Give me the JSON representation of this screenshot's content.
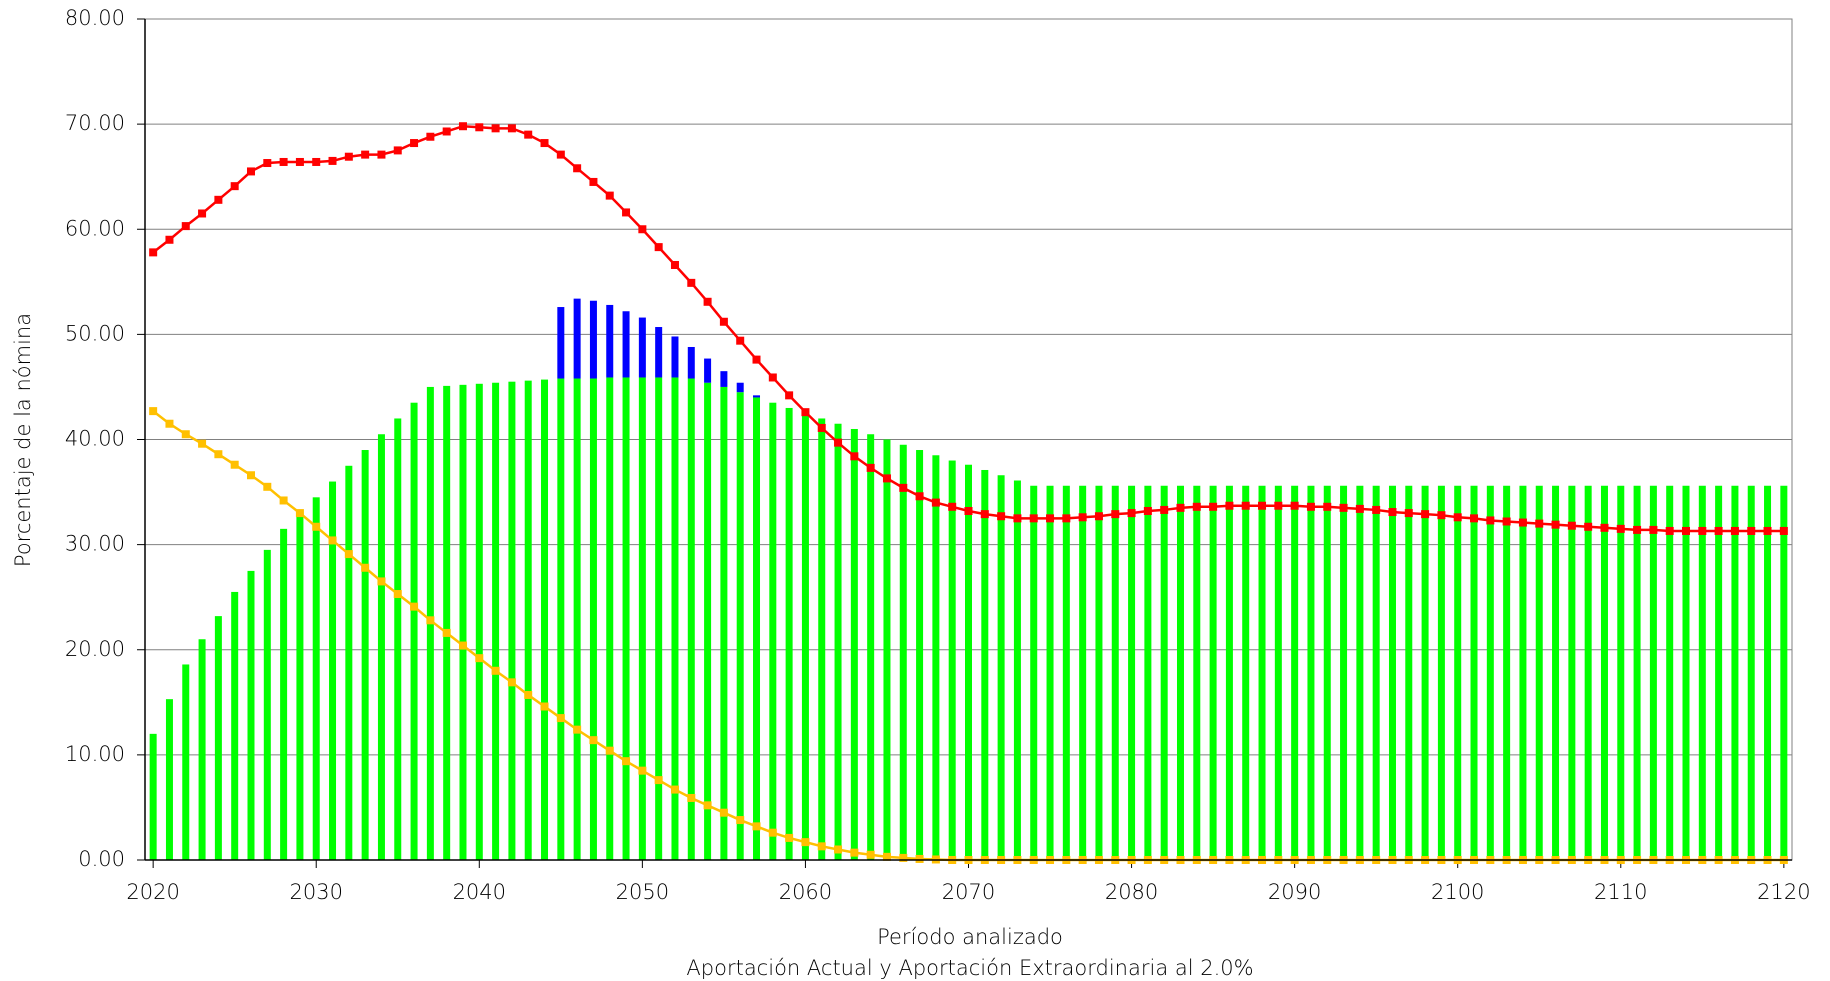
{
  "chart_data": {
    "type": "bar",
    "xlabel": "Período analizado",
    "subtitle": "Aportación Actual y Aportación Extraordinaria al 2.0%",
    "ylabel": "Porcentaje de la nómina",
    "x": [
      2020,
      2021,
      2022,
      2023,
      2024,
      2025,
      2026,
      2027,
      2028,
      2029,
      2030,
      2031,
      2032,
      2033,
      2034,
      2035,
      2036,
      2037,
      2038,
      2039,
      2040,
      2041,
      2042,
      2043,
      2044,
      2045,
      2046,
      2047,
      2048,
      2049,
      2050,
      2051,
      2052,
      2053,
      2054,
      2055,
      2056,
      2057,
      2058,
      2059,
      2060,
      2061,
      2062,
      2063,
      2064,
      2065,
      2066,
      2067,
      2068,
      2069,
      2070,
      2071,
      2072,
      2073,
      2074,
      2075,
      2076,
      2077,
      2078,
      2079,
      2080,
      2081,
      2082,
      2083,
      2084,
      2085,
      2086,
      2087,
      2088,
      2089,
      2090,
      2091,
      2092,
      2093,
      2094,
      2095,
      2096,
      2097,
      2098,
      2099,
      2100,
      2101,
      2102,
      2103,
      2104,
      2105,
      2106,
      2107,
      2108,
      2109,
      2110,
      2111,
      2112,
      2113,
      2114,
      2115,
      2116,
      2117,
      2118,
      2119,
      2120
    ],
    "xlim": [
      2019.5,
      2120.5
    ],
    "xticks": [
      2020,
      2030,
      2040,
      2050,
      2060,
      2070,
      2080,
      2090,
      2100,
      2110,
      2120
    ],
    "ylim": [
      0,
      80
    ],
    "yticks": [
      {
        "value": 0,
        "label": "0.00"
      },
      {
        "value": 10,
        "label": "10.00"
      },
      {
        "value": 20,
        "label": "20.00"
      },
      {
        "value": 30,
        "label": "30.00"
      },
      {
        "value": 40,
        "label": "40.00"
      },
      {
        "value": 50,
        "label": "50.00"
      },
      {
        "value": 60,
        "label": "60.00"
      },
      {
        "value": 70,
        "label": "70.00"
      },
      {
        "value": 80,
        "label": "80.00"
      }
    ],
    "grid": true,
    "series": [
      {
        "type": "bar",
        "color": "#00ff00",
        "values": [
          12,
          15.3,
          18.6,
          21,
          23.2,
          25.5,
          27.5,
          29.5,
          31.5,
          33,
          34.5,
          36,
          37.5,
          39,
          40.5,
          42,
          43.5,
          45,
          45.1,
          45.2,
          45.3,
          45.4,
          45.5,
          45.6,
          45.7,
          45.8,
          45.8,
          45.8,
          45.9,
          45.9,
          45.9,
          45.9,
          45.9,
          45.8,
          45.4,
          45,
          44.5,
          44,
          43.5,
          43,
          42.5,
          42,
          41.5,
          41,
          40.5,
          40,
          39.5,
          39,
          38.5,
          38,
          37.6,
          37.1,
          36.6,
          36.1,
          35.6,
          35.6,
          35.6,
          35.6,
          35.6,
          35.6,
          35.6,
          35.6,
          35.6,
          35.6,
          35.6,
          35.6,
          35.6,
          35.6,
          35.6,
          35.6,
          35.6,
          35.6,
          35.6,
          35.6,
          35.6,
          35.6,
          35.6,
          35.6,
          35.6,
          35.6,
          35.6,
          35.6,
          35.6,
          35.6,
          35.6,
          35.6,
          35.6,
          35.6,
          35.6,
          35.6,
          35.6,
          35.6,
          35.6,
          35.6,
          35.6,
          35.6,
          35.6,
          35.6,
          35.6,
          35.6,
          35.6
        ]
      },
      {
        "type": "bar",
        "color": "#0000ff",
        "values": [
          0,
          0,
          0,
          0,
          0,
          0,
          0,
          0,
          0,
          0,
          0,
          0,
          0,
          0,
          0,
          0,
          0,
          0,
          0,
          0,
          0,
          0,
          0,
          0,
          0,
          6.8,
          7.6,
          7.4,
          6.9,
          6.3,
          5.7,
          4.8,
          3.9,
          3,
          2.3,
          1.5,
          0.9,
          0.2,
          0,
          0,
          0,
          0,
          0,
          0,
          0,
          0,
          0,
          0,
          0,
          0,
          0,
          0,
          0,
          0,
          0,
          0,
          0,
          0,
          0,
          0,
          0,
          0,
          0,
          0,
          0,
          0,
          0,
          0,
          0,
          0,
          0,
          0,
          0,
          0,
          0,
          0,
          0,
          0,
          0,
          0,
          0,
          0,
          0,
          0,
          0,
          0,
          0,
          0,
          0,
          0,
          0,
          0,
          0,
          0,
          0,
          0,
          0,
          0,
          0,
          0,
          0
        ]
      },
      {
        "type": "line",
        "color": "#ff0000",
        "values": [
          57.8,
          59,
          60.3,
          61.5,
          62.8,
          64.1,
          65.5,
          66.3,
          66.4,
          66.4,
          66.4,
          66.5,
          66.9,
          67.1,
          67.1,
          67.5,
          68.2,
          68.8,
          69.3,
          69.8,
          69.7,
          69.6,
          69.6,
          69,
          68.2,
          67.1,
          65.8,
          64.5,
          63.2,
          61.6,
          60,
          58.3,
          56.6,
          54.9,
          53.1,
          51.2,
          49.4,
          47.6,
          45.9,
          44.2,
          42.6,
          41.1,
          39.7,
          38.4,
          37.3,
          36.3,
          35.4,
          34.6,
          34,
          33.6,
          33.2,
          32.9,
          32.7,
          32.5,
          32.5,
          32.5,
          32.5,
          32.6,
          32.7,
          32.9,
          33,
          33.2,
          33.3,
          33.5,
          33.6,
          33.6,
          33.7,
          33.7,
          33.7,
          33.7,
          33.7,
          33.6,
          33.6,
          33.5,
          33.4,
          33.3,
          33.1,
          33,
          32.9,
          32.8,
          32.6,
          32.5,
          32.3,
          32.2,
          32.1,
          32,
          31.9,
          31.8,
          31.7,
          31.6,
          31.5,
          31.4,
          31.4,
          31.3,
          31.3,
          31.3,
          31.3,
          31.3,
          31.3,
          31.3,
          31.3
        ]
      },
      {
        "type": "line",
        "color": "#ffc000",
        "values": [
          42.7,
          41.5,
          40.5,
          39.6,
          38.6,
          37.6,
          36.6,
          35.5,
          34.2,
          33,
          31.7,
          30.4,
          29.1,
          27.8,
          26.5,
          25.3,
          24.1,
          22.8,
          21.6,
          20.4,
          19.2,
          18,
          16.9,
          15.7,
          14.6,
          13.5,
          12.4,
          11.4,
          10.4,
          9.4,
          8.5,
          7.6,
          6.7,
          5.9,
          5.2,
          4.5,
          3.8,
          3.2,
          2.6,
          2.1,
          1.7,
          1.3,
          1,
          0.7,
          0.5,
          0.3,
          0.2,
          0.1,
          0.05,
          0,
          0,
          0,
          0,
          0,
          0,
          0,
          0,
          0,
          0,
          0,
          0,
          0,
          0,
          0,
          0,
          0,
          0,
          0,
          0,
          0,
          0,
          0,
          0,
          0,
          0,
          0,
          0,
          0,
          0,
          0,
          0,
          0,
          0,
          0,
          0,
          0,
          0,
          0,
          0,
          0,
          0,
          0,
          0,
          0,
          0,
          0,
          0,
          0,
          0,
          0,
          0
        ]
      }
    ]
  }
}
